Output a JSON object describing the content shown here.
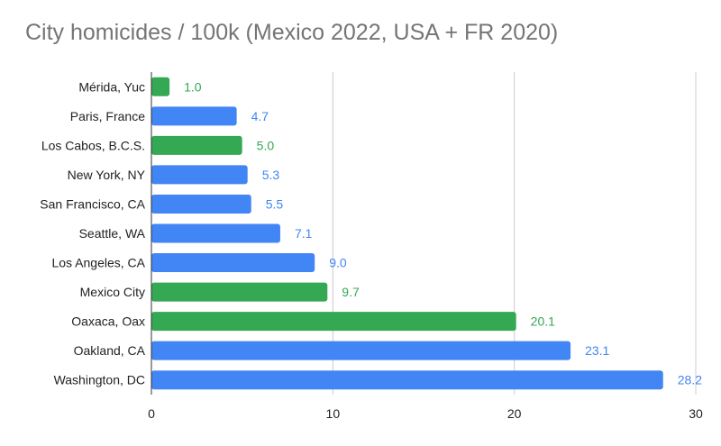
{
  "chart_data": {
    "type": "bar",
    "orientation": "horizontal",
    "title": "City homicides / 100k (Mexico 2022, USA + FR 2020)",
    "xlabel": "",
    "ylabel": "",
    "xlim": [
      0,
      30
    ],
    "xticks": [
      0,
      10,
      20,
      30
    ],
    "grid": true,
    "legend": "none",
    "categories": [
      "Mérida, Yuc",
      "Paris, France",
      "Los Cabos, B.C.S.",
      "New York, NY",
      "San Francisco, CA",
      "Seattle, WA",
      "Los Angeles, CA",
      "Mexico City",
      "Oaxaca, Oax",
      "Oakland, CA",
      "Washington, DC"
    ],
    "values": [
      1.0,
      4.7,
      5.0,
      5.3,
      5.5,
      7.1,
      9.0,
      9.7,
      20.1,
      23.1,
      28.2
    ],
    "data_labels": [
      "1.0",
      "4.7",
      "5.0",
      "5.3",
      "5.5",
      "7.1",
      "9.0",
      "9.7",
      "20.1",
      "23.1",
      "28.2"
    ],
    "colors": [
      "#34a853",
      "#4285f4",
      "#34a853",
      "#4285f4",
      "#4285f4",
      "#4285f4",
      "#4285f4",
      "#34a853",
      "#34a853",
      "#4285f4",
      "#4285f4"
    ]
  },
  "style": {
    "title_color": "#757575",
    "mexico_color": "#34a853",
    "usa_fr_color": "#4285f4",
    "grid_color": "#cccccc",
    "axis_color": "#333333",
    "label_color": "#222222"
  }
}
